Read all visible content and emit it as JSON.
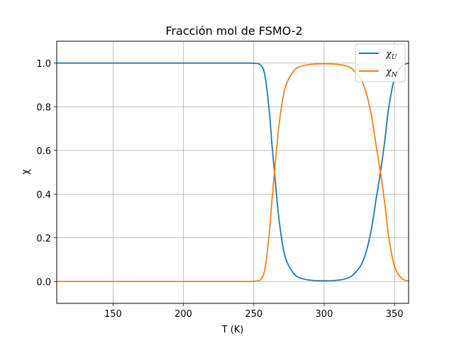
{
  "chart_data": {
    "type": "line",
    "title": "Fracción mol de FSMO-2",
    "xlabel": "T (K)",
    "ylabel": "χ",
    "xlim": [
      110,
      360
    ],
    "ylim": [
      -0.1,
      1.1
    ],
    "xticks": [
      150,
      200,
      250,
      300,
      350
    ],
    "xtick_labels": [
      "150",
      "200",
      "250",
      "300",
      "350"
    ],
    "yticks": [
      0.0,
      0.2,
      0.4,
      0.6,
      0.8,
      1.0
    ],
    "ytick_labels": [
      "0.0",
      "0.2",
      "0.4",
      "0.6",
      "0.8",
      "1.0"
    ],
    "grid": true,
    "legend_position": "top-right",
    "series": [
      {
        "name": "χU",
        "name_base": "χ",
        "name_sub": "U",
        "color": "#1f77b4",
        "x": [
          110,
          200,
          240,
          250,
          255,
          258,
          261,
          263,
          265,
          268,
          272,
          278,
          285,
          300,
          315,
          322,
          328,
          333,
          337,
          340,
          343,
          346,
          350,
          355,
          360
        ],
        "y": [
          1.0,
          1.0,
          1.0,
          0.999,
          0.99,
          0.94,
          0.78,
          0.62,
          0.48,
          0.28,
          0.12,
          0.04,
          0.012,
          0.003,
          0.012,
          0.04,
          0.1,
          0.22,
          0.38,
          0.5,
          0.64,
          0.8,
          0.93,
          0.985,
          1.0
        ]
      },
      {
        "name": "χN",
        "name_base": "χ",
        "name_sub": "N",
        "color": "#ff7f0e",
        "x": [
          110,
          200,
          240,
          250,
          255,
          258,
          261,
          263,
          265,
          268,
          272,
          278,
          285,
          300,
          315,
          322,
          328,
          333,
          337,
          340,
          343,
          346,
          350,
          355,
          360
        ],
        "y": [
          0.0,
          0.0,
          0.0,
          0.001,
          0.01,
          0.06,
          0.22,
          0.38,
          0.52,
          0.72,
          0.88,
          0.96,
          0.988,
          0.997,
          0.988,
          0.96,
          0.9,
          0.78,
          0.62,
          0.5,
          0.36,
          0.2,
          0.07,
          0.015,
          0.002
        ]
      }
    ]
  }
}
